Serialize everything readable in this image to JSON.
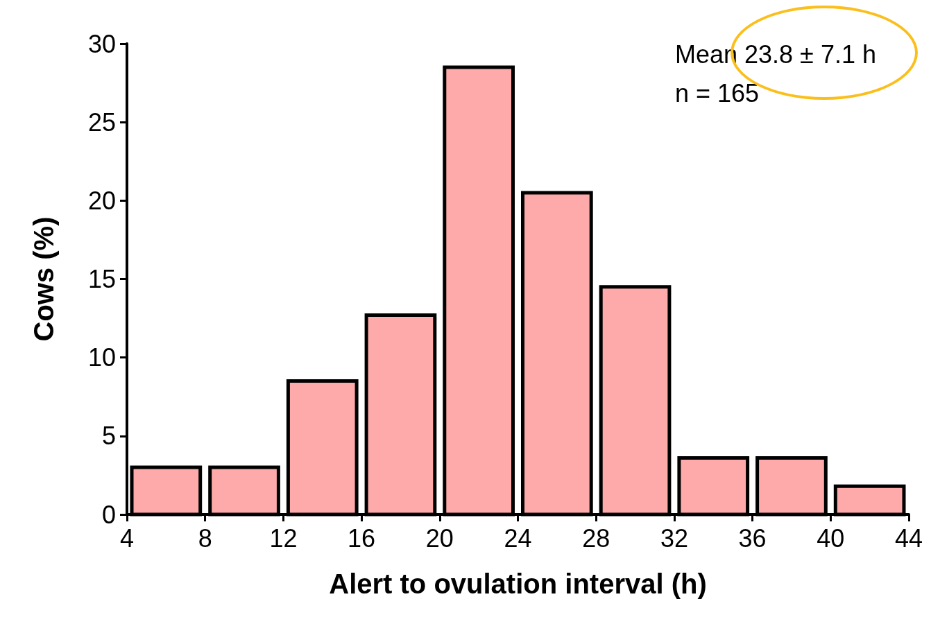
{
  "chart_data": {
    "type": "histogram",
    "xlabel": "Alert to ovulation interval (h)",
    "ylabel": "Cows (%)",
    "bins": [
      4,
      8,
      12,
      16,
      20,
      24,
      28,
      32,
      36,
      40,
      44
    ],
    "values": [
      3.0,
      3.0,
      8.5,
      12.7,
      28.5,
      20.5,
      14.5,
      3.6,
      3.6,
      1.8
    ],
    "color": "#ffaaaa",
    "xlim": [
      4,
      44
    ],
    "xticks": [
      4,
      8,
      12,
      16,
      20,
      24,
      28,
      32,
      36,
      40,
      44
    ],
    "ylim": [
      0,
      30
    ],
    "yticks": [
      0,
      5,
      10,
      15,
      20,
      25,
      30
    ],
    "grid": false,
    "annotations": [
      "Mean 23.8 ± 7.1 h",
      "n = 165"
    ]
  }
}
